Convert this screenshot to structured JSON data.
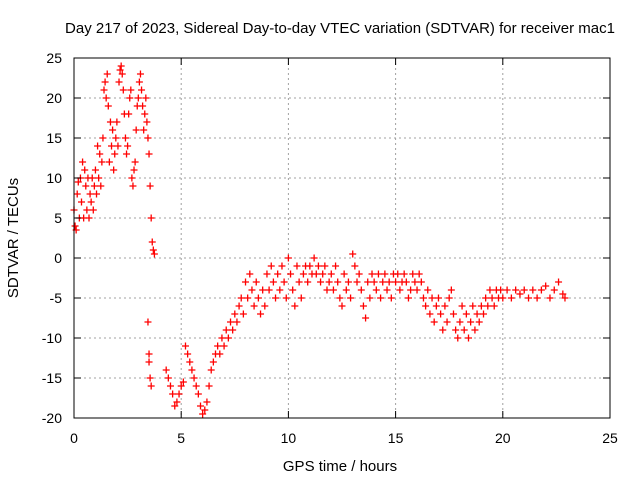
{
  "chart_data": {
    "type": "scatter",
    "title": "Day 217 of 2023, Sidereal Day-to-day VTEC variation (SDTVAR) for receiver mac1",
    "xlabel": "GPS time / hours",
    "ylabel": "SDTVAR / TECUs",
    "xlim": [
      0,
      25
    ],
    "ylim": [
      -20,
      25
    ],
    "xticks": [
      0,
      5,
      10,
      15,
      20,
      25
    ],
    "yticks": [
      -20,
      -15,
      -10,
      -5,
      0,
      5,
      10,
      15,
      20,
      25
    ],
    "grid": true,
    "marker": "+",
    "color": "#ff0000",
    "series": [
      {
        "name": "SDTVAR",
        "points": [
          [
            0.0,
            6
          ],
          [
            0.05,
            4
          ],
          [
            0.1,
            3.5
          ],
          [
            0.15,
            8
          ],
          [
            0.2,
            9.5
          ],
          [
            0.25,
            5
          ],
          [
            0.3,
            10
          ],
          [
            0.35,
            7
          ],
          [
            0.4,
            12
          ],
          [
            0.45,
            5
          ],
          [
            0.5,
            11
          ],
          [
            0.55,
            9
          ],
          [
            0.6,
            6
          ],
          [
            0.65,
            10
          ],
          [
            0.7,
            5
          ],
          [
            0.75,
            8
          ],
          [
            0.8,
            7
          ],
          [
            0.85,
            10
          ],
          [
            0.9,
            6
          ],
          [
            0.95,
            9
          ],
          [
            1.0,
            11
          ],
          [
            1.05,
            8
          ],
          [
            1.1,
            14
          ],
          [
            1.15,
            10
          ],
          [
            1.2,
            13
          ],
          [
            1.25,
            9
          ],
          [
            1.3,
            12
          ],
          [
            1.35,
            15
          ],
          [
            1.4,
            21
          ],
          [
            1.45,
            22
          ],
          [
            1.5,
            20
          ],
          [
            1.55,
            23
          ],
          [
            1.6,
            19
          ],
          [
            1.65,
            12
          ],
          [
            1.7,
            17
          ],
          [
            1.75,
            14
          ],
          [
            1.8,
            16
          ],
          [
            1.85,
            11
          ],
          [
            1.9,
            13
          ],
          [
            1.95,
            15
          ],
          [
            2.0,
            17
          ],
          [
            2.05,
            14
          ],
          [
            2.1,
            22
          ],
          [
            2.15,
            23.5
          ],
          [
            2.2,
            24
          ],
          [
            2.25,
            23
          ],
          [
            2.3,
            21
          ],
          [
            2.35,
            18
          ],
          [
            2.4,
            15
          ],
          [
            2.45,
            13
          ],
          [
            2.5,
            14
          ],
          [
            2.55,
            18
          ],
          [
            2.6,
            20
          ],
          [
            2.65,
            21
          ],
          [
            2.7,
            10
          ],
          [
            2.75,
            9
          ],
          [
            2.8,
            11
          ],
          [
            2.85,
            12
          ],
          [
            2.9,
            16
          ],
          [
            2.95,
            19
          ],
          [
            3.0,
            20
          ],
          [
            3.05,
            22
          ],
          [
            3.1,
            23
          ],
          [
            3.15,
            21
          ],
          [
            3.2,
            19
          ],
          [
            3.25,
            16
          ],
          [
            3.3,
            18
          ],
          [
            3.35,
            20
          ],
          [
            3.4,
            17
          ],
          [
            3.45,
            15
          ],
          [
            3.5,
            13
          ],
          [
            3.55,
            9
          ],
          [
            3.6,
            5
          ],
          [
            3.65,
            2
          ],
          [
            3.7,
            1
          ],
          [
            3.75,
            0.5
          ],
          [
            3.45,
            -8
          ],
          [
            3.5,
            -12
          ],
          [
            3.55,
            -15
          ],
          [
            3.6,
            -16
          ],
          [
            3.5,
            -13
          ],
          [
            4.3,
            -14
          ],
          [
            4.4,
            -15
          ],
          [
            4.5,
            -16
          ],
          [
            4.6,
            -17
          ],
          [
            4.7,
            -18.5
          ],
          [
            4.8,
            -18
          ],
          [
            4.9,
            -17
          ],
          [
            5.0,
            -16
          ],
          [
            5.1,
            -15.5
          ],
          [
            5.2,
            -11
          ],
          [
            5.3,
            -12
          ],
          [
            5.4,
            -13
          ],
          [
            5.5,
            -14
          ],
          [
            5.6,
            -15
          ],
          [
            5.7,
            -16
          ],
          [
            5.8,
            -17
          ],
          [
            5.9,
            -18.5
          ],
          [
            6.0,
            -19.5
          ],
          [
            6.1,
            -19
          ],
          [
            6.2,
            -18
          ],
          [
            6.3,
            -16
          ],
          [
            6.4,
            -14
          ],
          [
            6.5,
            -13
          ],
          [
            6.6,
            -12
          ],
          [
            6.7,
            -11
          ],
          [
            6.8,
            -12
          ],
          [
            6.9,
            -10
          ],
          [
            7.0,
            -11
          ],
          [
            7.1,
            -9
          ],
          [
            7.2,
            -10
          ],
          [
            7.3,
            -8
          ],
          [
            7.4,
            -9
          ],
          [
            7.5,
            -7
          ],
          [
            7.6,
            -8
          ],
          [
            7.7,
            -6
          ],
          [
            7.8,
            -5
          ],
          [
            7.9,
            -7
          ],
          [
            8.0,
            -3
          ],
          [
            8.1,
            -5
          ],
          [
            8.2,
            -2
          ],
          [
            8.3,
            -4
          ],
          [
            8.4,
            -6
          ],
          [
            8.5,
            -3
          ],
          [
            8.6,
            -5
          ],
          [
            8.7,
            -7
          ],
          [
            8.8,
            -4
          ],
          [
            8.9,
            -6
          ],
          [
            9.0,
            -2
          ],
          [
            9.1,
            -4
          ],
          [
            9.2,
            -1
          ],
          [
            9.3,
            -3
          ],
          [
            9.4,
            -5
          ],
          [
            9.5,
            -2
          ],
          [
            9.6,
            -4
          ],
          [
            9.7,
            -1
          ],
          [
            9.8,
            -3
          ],
          [
            9.9,
            -5
          ],
          [
            10.0,
            0
          ],
          [
            10.1,
            -2
          ],
          [
            10.2,
            -4
          ],
          [
            10.3,
            -6
          ],
          [
            10.4,
            -1
          ],
          [
            10.5,
            -3
          ],
          [
            10.6,
            -5
          ],
          [
            10.7,
            -2
          ],
          [
            10.8,
            -1
          ],
          [
            10.9,
            -3
          ],
          [
            11.0,
            -1
          ],
          [
            11.1,
            -2
          ],
          [
            11.2,
            0
          ],
          [
            11.3,
            -2
          ],
          [
            11.4,
            -1
          ],
          [
            11.5,
            -3
          ],
          [
            11.6,
            -2
          ],
          [
            11.7,
            -1
          ],
          [
            11.8,
            -4
          ],
          [
            11.9,
            -3
          ],
          [
            12.0,
            -2
          ],
          [
            12.1,
            -4
          ],
          [
            12.2,
            -1
          ],
          [
            12.3,
            -3
          ],
          [
            12.4,
            -5
          ],
          [
            12.5,
            -6
          ],
          [
            12.6,
            -2
          ],
          [
            12.7,
            -4
          ],
          [
            12.8,
            -3
          ],
          [
            12.9,
            -5
          ],
          [
            13.0,
            0.5
          ],
          [
            13.1,
            -1
          ],
          [
            13.2,
            -3
          ],
          [
            13.3,
            -2
          ],
          [
            13.4,
            -4
          ],
          [
            13.5,
            -6
          ],
          [
            13.6,
            -7.5
          ],
          [
            13.7,
            -3
          ],
          [
            13.8,
            -5
          ],
          [
            13.9,
            -2
          ],
          [
            14.0,
            -3
          ],
          [
            14.1,
            -4
          ],
          [
            14.2,
            -2
          ],
          [
            14.3,
            -5
          ],
          [
            14.4,
            -3
          ],
          [
            14.5,
            -2
          ],
          [
            14.6,
            -4
          ],
          [
            14.7,
            -3
          ],
          [
            14.8,
            -5
          ],
          [
            14.9,
            -2
          ],
          [
            15.0,
            -3
          ],
          [
            15.1,
            -2
          ],
          [
            15.2,
            -4
          ],
          [
            15.3,
            -3
          ],
          [
            15.4,
            -2
          ],
          [
            15.5,
            -3
          ],
          [
            15.6,
            -5
          ],
          [
            15.7,
            -4
          ],
          [
            15.8,
            -2
          ],
          [
            15.9,
            -3
          ],
          [
            16.0,
            -4
          ],
          [
            16.1,
            -2
          ],
          [
            16.2,
            -3
          ],
          [
            16.3,
            -5
          ],
          [
            16.4,
            -6
          ],
          [
            16.5,
            -4
          ],
          [
            16.6,
            -7
          ],
          [
            16.7,
            -5
          ],
          [
            16.8,
            -8
          ],
          [
            16.9,
            -6
          ],
          [
            17.0,
            -5
          ],
          [
            17.1,
            -7
          ],
          [
            17.2,
            -9
          ],
          [
            17.3,
            -6
          ],
          [
            17.4,
            -8
          ],
          [
            17.5,
            -5
          ],
          [
            17.6,
            -4
          ],
          [
            17.7,
            -7
          ],
          [
            17.8,
            -9
          ],
          [
            17.9,
            -10
          ],
          [
            18.0,
            -8
          ],
          [
            18.1,
            -6
          ],
          [
            18.2,
            -9
          ],
          [
            18.3,
            -7
          ],
          [
            18.4,
            -10
          ],
          [
            18.5,
            -8
          ],
          [
            18.6,
            -6
          ],
          [
            18.7,
            -9
          ],
          [
            18.8,
            -7
          ],
          [
            18.9,
            -8
          ],
          [
            19.0,
            -6
          ],
          [
            19.1,
            -7
          ],
          [
            19.2,
            -5
          ],
          [
            19.3,
            -6
          ],
          [
            19.4,
            -4
          ],
          [
            19.5,
            -5
          ],
          [
            19.6,
            -6
          ],
          [
            19.7,
            -4
          ],
          [
            19.8,
            -5
          ],
          [
            19.9,
            -4
          ],
          [
            20.0,
            -5
          ],
          [
            20.2,
            -4
          ],
          [
            20.4,
            -5
          ],
          [
            20.6,
            -4
          ],
          [
            20.8,
            -4.5
          ],
          [
            21.0,
            -4
          ],
          [
            21.2,
            -5
          ],
          [
            21.4,
            -4
          ],
          [
            21.6,
            -5
          ],
          [
            21.8,
            -4
          ],
          [
            22.0,
            -3.5
          ],
          [
            22.2,
            -5
          ],
          [
            22.4,
            -4
          ],
          [
            22.6,
            -3
          ],
          [
            22.8,
            -4.5
          ],
          [
            22.9,
            -5
          ]
        ]
      }
    ]
  }
}
